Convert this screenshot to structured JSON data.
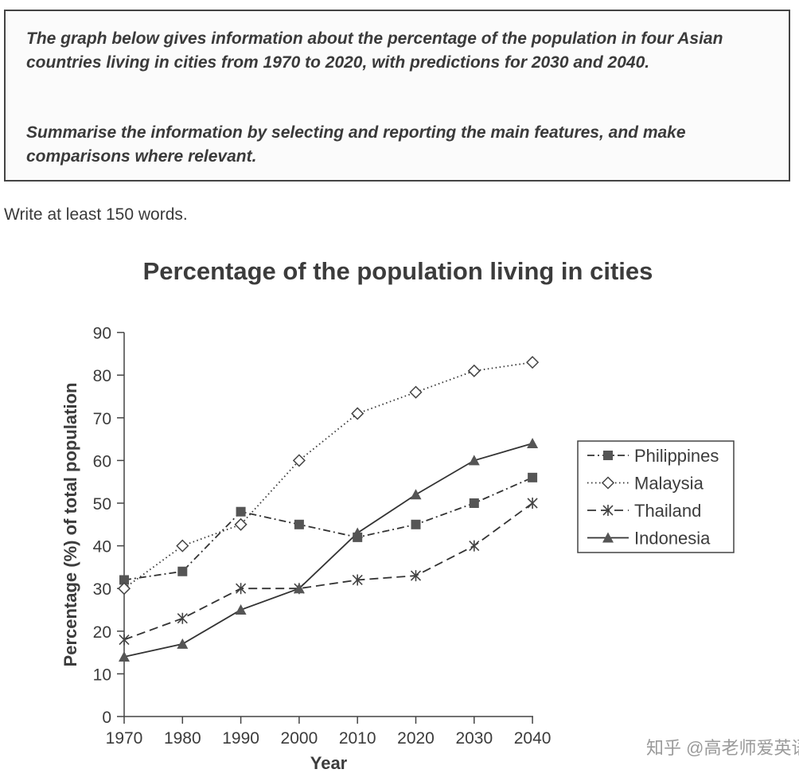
{
  "task": {
    "paragraph1": "The graph below gives information about the percentage of the population in four Asian countries living in cities from 1970 to 2020, with predictions for 2030 and 2040.",
    "paragraph2": "Summarise the information by selecting and reporting the main features, and make comparisons where relevant."
  },
  "instruction": "Write at least 150 words.",
  "watermark": "知乎 @高老师爱英语写作",
  "chart_data": {
    "type": "line",
    "title": "Percentage of the population living in cities",
    "xlabel": "Year",
    "ylabel": "Percentage (%) of total population",
    "x": [
      1970,
      1980,
      1990,
      2000,
      2010,
      2020,
      2030,
      2040
    ],
    "ylim": [
      0,
      90
    ],
    "yticks": [
      0,
      10,
      20,
      30,
      40,
      50,
      60,
      70,
      80,
      90
    ],
    "grid": false,
    "legend_position": "right",
    "series": [
      {
        "name": "Philippines",
        "marker": "square",
        "dash": "dash-dot",
        "values": [
          32,
          34,
          48,
          45,
          42,
          45,
          50,
          56
        ]
      },
      {
        "name": "Malaysia",
        "marker": "diamond",
        "dash": "dotted",
        "values": [
          30,
          40,
          45,
          60,
          71,
          76,
          81,
          83
        ]
      },
      {
        "name": "Thailand",
        "marker": "cross",
        "dash": "dashed",
        "values": [
          18,
          23,
          30,
          30,
          32,
          33,
          40,
          50
        ]
      },
      {
        "name": "Indonesia",
        "marker": "triangle",
        "dash": "solid",
        "values": [
          14,
          17,
          25,
          30,
          43,
          52,
          60,
          64
        ]
      }
    ]
  }
}
